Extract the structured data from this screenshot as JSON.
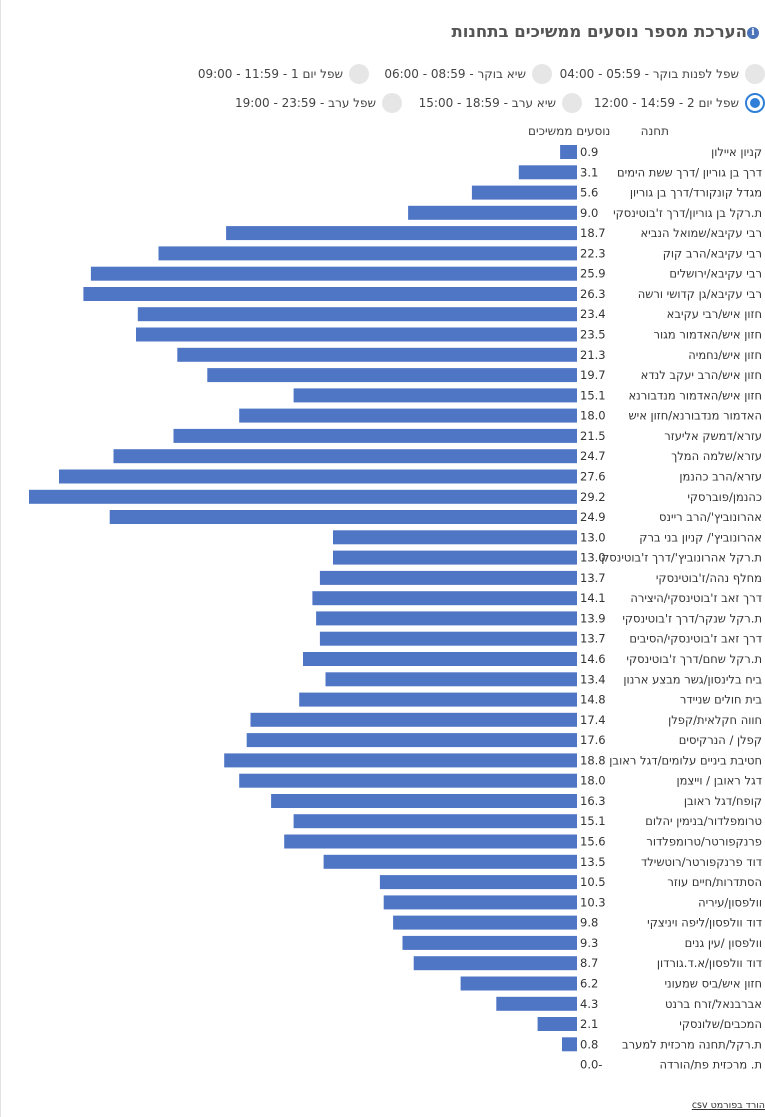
{
  "title": "הערכת מספר נוסעים ממשיכים בתחנות",
  "time_options": [
    {
      "label": "שפל לפנות בוקר - 05:59 - 04:00",
      "selected": false
    },
    {
      "label": "שיא בוקר - 08:59 - 06:00",
      "selected": false
    },
    {
      "label": "שפל יום 1 - 11:59 - 09:00",
      "selected": false
    },
    {
      "label": "שפל יום 2 - 14:59 - 12:00",
      "selected": true
    },
    {
      "label": "שיא ערב - 18:59 - 15:00",
      "selected": false
    },
    {
      "label": "שפל ערב - 23:59 - 19:00",
      "selected": false
    }
  ],
  "table_headers": {
    "station": "תחנה",
    "passengers": "נוסעים ממשיכים"
  },
  "csv_link": "הורד בפורמט csv",
  "colors": {
    "bar": "#4f76c4",
    "accent": "#2f7fd8"
  },
  "chart_data": {
    "type": "bar",
    "orientation": "horizontal",
    "title": "הערכת מספר נוסעים ממשיכים בתחנות",
    "xlabel": "נוסעים ממשיכים",
    "ylabel": "תחנה",
    "xlim": [
      0,
      29.2
    ],
    "categories": [
      "קניון איילון",
      "דרך בן גוריון /דרך ששת הימים",
      "מגדל קונקורד/דרך בן גוריון",
      "ת.רקל בן גוריון/דרך ז'בוטינסקי",
      "רבי עקיבא/שמואל הנביא",
      "רבי עקיבא/הרב קוק",
      "רבי עקיבא/ירושלים",
      "רבי עקיבא/גן קדושי ורשה",
      "חזון איש/רבי עקיבא",
      "חזון איש/האדמור מגור",
      "חזון איש/נחמיה",
      "חזון איש/הרב יעקב לנדא",
      "חזון איש/האדמור מנדבורנא",
      "האדמור מנדבורנא/חזון איש",
      "עזרא/דמשק אליעזר",
      "עזרא/שלמה המלך",
      "עזרא/הרב כהנמן",
      "כהנמן/פוברסקי",
      "אהרונוביץ'/הרב ריינס",
      "אהרונוביץ'/ קניון בני ברק",
      "ת.רקל אהרונוביץ'/דרך ז'בוטינסקי",
      "מחלף נהה/ז'בוטינסקי",
      "דרך זאב ז'בוטינסקי/היצירה",
      "ת.רקל שנקר/דרך ז'בוטינסקי",
      "דרך זאב ז'בוטינסקי/הסיבים",
      "ת.רקל שחם/דרך ז'בוטינסקי",
      "ביח בלינסון/גשר מבצע ארנון",
      "בית חולים שניידר",
      "חווה חקלאית/קפלן",
      "קפלן / הנרקיסים",
      "חטיבת ביניים עלומים/דגל ראובן",
      "דגל ראובן / וייצמן",
      "קופח/דגל ראובן",
      "טרומפלדור/בנימין יהלום",
      "פרנקפורטר/טרומפלדור",
      "דוד פרנקפורטר/רוטשילד",
      "הסתדרות/חיים עוזר",
      "וולפסון/עיריה",
      "דוד וולפסון/ליפה ויניצקי",
      "וולפסון /עין גנים",
      "דוד וולפסון/א.ד.גורדון",
      "חזון איש/ביס שמעוני",
      "אברבנאל/זרח ברנט",
      "המכבים/שלונסקי",
      "ת.רקל/תחנה מרכזית למערב",
      "ת. מרכזית פת/הורדה"
    ],
    "values": [
      0.9,
      3.1,
      5.6,
      9.0,
      18.7,
      22.3,
      25.9,
      26.3,
      23.4,
      23.5,
      21.3,
      19.7,
      15.1,
      18.0,
      21.5,
      24.7,
      27.6,
      29.2,
      24.9,
      13.0,
      13.0,
      13.7,
      14.1,
      13.9,
      13.7,
      14.6,
      13.4,
      14.8,
      17.4,
      17.6,
      18.8,
      18.0,
      16.3,
      15.1,
      15.6,
      13.5,
      10.5,
      10.3,
      9.8,
      9.3,
      8.7,
      6.2,
      4.3,
      2.1,
      0.8,
      0.0
    ],
    "value_labels": [
      "0.9",
      "3.1",
      "5.6",
      "9.0",
      "18.7",
      "22.3",
      "25.9",
      "26.3",
      "23.4",
      "23.5",
      "21.3",
      "19.7",
      "15.1",
      "18.0",
      "21.5",
      "24.7",
      "27.6",
      "29.2",
      "24.9",
      "13.0",
      "13.0",
      "13.7",
      "14.1",
      "13.9",
      "13.7",
      "14.6",
      "13.4",
      "14.8",
      "17.4",
      "17.6",
      "18.8",
      "18.0",
      "16.3",
      "15.1",
      "15.6",
      "13.5",
      "10.5",
      "10.3",
      "9.8",
      "9.3",
      "8.7",
      "6.2",
      "4.3",
      "2.1",
      "0.8",
      "0.0-"
    ]
  }
}
